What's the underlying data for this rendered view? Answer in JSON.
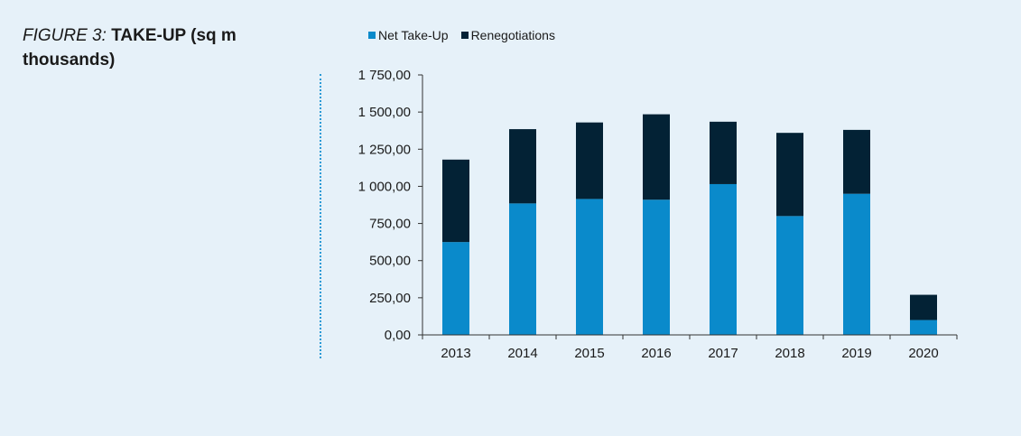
{
  "figure": {
    "label": "FIGURE 3:",
    "title": "TAKE-UP (sq m thousands)"
  },
  "legend": {
    "items": [
      {
        "name": "Net Take-Up",
        "color": "#0a8acb"
      },
      {
        "name": "Renegotiations",
        "color": "#032235"
      }
    ]
  },
  "chart_data": {
    "type": "bar",
    "stacked": true,
    "categories": [
      "2013",
      "2014",
      "2015",
      "2016",
      "2017",
      "2018",
      "2019",
      "2020"
    ],
    "series": [
      {
        "name": "Net Take-Up",
        "color": "#0a8acb",
        "values": [
          625,
          885,
          915,
          910,
          1015,
          800,
          950,
          100
        ]
      },
      {
        "name": "Renegotiations",
        "color": "#032235",
        "values": [
          555,
          500,
          515,
          575,
          420,
          560,
          430,
          170
        ]
      }
    ],
    "ylim": [
      0,
      1750
    ],
    "yticks": [
      0,
      250,
      500,
      750,
      1000,
      1250,
      1500,
      1750
    ],
    "ytick_labels": [
      "0,00",
      "250,00",
      "500,00",
      "750,00",
      "1 000,00",
      "1 250,00",
      "1 500,00",
      "1 750,00"
    ],
    "xlabel": "",
    "ylabel": "",
    "grid": false,
    "legend_position": "top"
  }
}
